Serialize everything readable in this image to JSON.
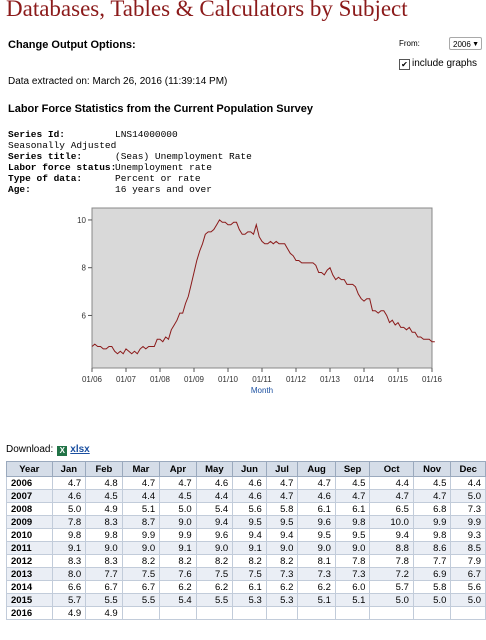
{
  "header": {
    "title": "Databases, Tables & Calculators by Subject"
  },
  "options": {
    "change_output_label": "Change Output Options:",
    "from_label": "From:",
    "from_year": "2006",
    "include_graphs_label": "include graphs",
    "include_graphs_checked": true
  },
  "extracted": "Data extracted on: March 26, 2016 (11:39:14 PM)",
  "section_title": "Labor Force Statistics from the Current Population Survey",
  "series_meta": [
    {
      "key": "Series Id:",
      "value": "LNS14000000",
      "bold": true
    },
    {
      "key": "Seasonally Adjusted",
      "value": "",
      "bold": false
    },
    {
      "key": "Series title:",
      "value": "(Seas) Unemployment Rate",
      "bold": true
    },
    {
      "key": "Labor force status:",
      "value": "Unemployment rate",
      "bold": true
    },
    {
      "key": "Type of data:",
      "value": "Percent or rate",
      "bold": true
    },
    {
      "key": "Age:",
      "value": "16 years and over",
      "bold": true
    }
  ],
  "chart_data": {
    "type": "line",
    "xlabel": "Month",
    "ylabel": "",
    "ylim": [
      3.8,
      10.5
    ],
    "yticks": [
      6,
      8,
      10
    ],
    "xticks": [
      "01/06",
      "01/07",
      "01/08",
      "01/09",
      "01/10",
      "01/11",
      "01/12",
      "01/13",
      "01/14",
      "01/15",
      "01/16"
    ],
    "grid": false,
    "colors": {
      "line": "#8b1a1a",
      "plot_bg": "#d9d9d9"
    },
    "x_start": "2006-01",
    "y": [
      4.7,
      4.8,
      4.7,
      4.7,
      4.6,
      4.6,
      4.7,
      4.7,
      4.5,
      4.4,
      4.5,
      4.4,
      4.6,
      4.5,
      4.4,
      4.5,
      4.4,
      4.6,
      4.7,
      4.6,
      4.7,
      4.7,
      4.7,
      5.0,
      5.0,
      4.9,
      5.1,
      5.0,
      5.4,
      5.6,
      5.8,
      6.1,
      6.1,
      6.5,
      6.8,
      7.3,
      7.8,
      8.3,
      8.7,
      9.0,
      9.4,
      9.5,
      9.5,
      9.6,
      9.8,
      10.0,
      9.9,
      9.9,
      9.8,
      9.8,
      9.9,
      9.9,
      9.6,
      9.4,
      9.4,
      9.5,
      9.5,
      9.4,
      9.8,
      9.3,
      9.1,
      9.0,
      9.0,
      9.1,
      9.0,
      9.1,
      9.0,
      9.0,
      9.0,
      8.8,
      8.6,
      8.5,
      8.3,
      8.3,
      8.2,
      8.2,
      8.2,
      8.2,
      8.2,
      8.1,
      7.8,
      7.8,
      7.7,
      7.9,
      8.0,
      7.7,
      7.5,
      7.6,
      7.5,
      7.5,
      7.3,
      7.3,
      7.3,
      7.2,
      6.9,
      6.7,
      6.6,
      6.7,
      6.7,
      6.2,
      6.2,
      6.1,
      6.2,
      6.2,
      6.0,
      5.7,
      5.8,
      5.6,
      5.7,
      5.5,
      5.5,
      5.4,
      5.5,
      5.3,
      5.3,
      5.1,
      5.1,
      5.0,
      5.0,
      5.0,
      4.9,
      4.9
    ]
  },
  "download": {
    "label": "Download:",
    "icon": "excel-icon",
    "link": "xlsx"
  },
  "table": {
    "headers": [
      "Year",
      "Jan",
      "Feb",
      "Mar",
      "Apr",
      "May",
      "Jun",
      "Jul",
      "Aug",
      "Sep",
      "Oct",
      "Nov",
      "Dec"
    ],
    "rows": [
      [
        "2006",
        "4.7",
        "4.8",
        "4.7",
        "4.7",
        "4.6",
        "4.6",
        "4.7",
        "4.7",
        "4.5",
        "4.4",
        "4.5",
        "4.4"
      ],
      [
        "2007",
        "4.6",
        "4.5",
        "4.4",
        "4.5",
        "4.4",
        "4.6",
        "4.7",
        "4.6",
        "4.7",
        "4.7",
        "4.7",
        "5.0"
      ],
      [
        "2008",
        "5.0",
        "4.9",
        "5.1",
        "5.0",
        "5.4",
        "5.6",
        "5.8",
        "6.1",
        "6.1",
        "6.5",
        "6.8",
        "7.3"
      ],
      [
        "2009",
        "7.8",
        "8.3",
        "8.7",
        "9.0",
        "9.4",
        "9.5",
        "9.5",
        "9.6",
        "9.8",
        "10.0",
        "9.9",
        "9.9"
      ],
      [
        "2010",
        "9.8",
        "9.8",
        "9.9",
        "9.9",
        "9.6",
        "9.4",
        "9.4",
        "9.5",
        "9.5",
        "9.4",
        "9.8",
        "9.3"
      ],
      [
        "2011",
        "9.1",
        "9.0",
        "9.0",
        "9.1",
        "9.0",
        "9.1",
        "9.0",
        "9.0",
        "9.0",
        "8.8",
        "8.6",
        "8.5"
      ],
      [
        "2012",
        "8.3",
        "8.3",
        "8.2",
        "8.2",
        "8.2",
        "8.2",
        "8.2",
        "8.1",
        "7.8",
        "7.8",
        "7.7",
        "7.9"
      ],
      [
        "2013",
        "8.0",
        "7.7",
        "7.5",
        "7.6",
        "7.5",
        "7.5",
        "7.3",
        "7.3",
        "7.3",
        "7.2",
        "6.9",
        "6.7"
      ],
      [
        "2014",
        "6.6",
        "6.7",
        "6.7",
        "6.2",
        "6.2",
        "6.1",
        "6.2",
        "6.2",
        "6.0",
        "5.7",
        "5.8",
        "5.6"
      ],
      [
        "2015",
        "5.7",
        "5.5",
        "5.5",
        "5.4",
        "5.5",
        "5.3",
        "5.3",
        "5.1",
        "5.1",
        "5.0",
        "5.0",
        "5.0"
      ],
      [
        "2016",
        "4.9",
        "4.9",
        "",
        "",
        "",
        "",
        "",
        "",
        "",
        "",
        "",
        ""
      ]
    ]
  }
}
